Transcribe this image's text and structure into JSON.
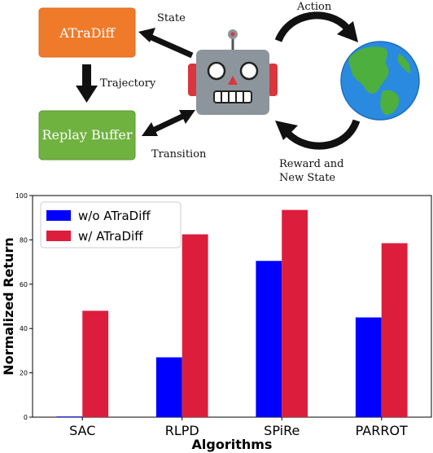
{
  "diagram": {
    "atradiff_box": "ATraDiff",
    "replay_box": "Replay Buffer",
    "edge_state": "State",
    "edge_trajectory": "Trajectory",
    "edge_transition": "Transition",
    "edge_action": "Action",
    "edge_reward_line1": "Reward and",
    "edge_reward_line2": "New State",
    "colors": {
      "atradiff": "#ef7b2a",
      "replay": "#6fb23f",
      "robot_body": "#8c959c",
      "robot_ears": "#d9363e"
    },
    "icons": [
      "robot-icon",
      "earth-globe-icon"
    ]
  },
  "chart_data": {
    "type": "bar",
    "categories": [
      "SAC",
      "RLPD",
      "SPiRe",
      "PARROT"
    ],
    "series": [
      {
        "name": "w/o ATraDiff",
        "color": "#0000ff",
        "values": [
          0.3,
          27,
          70.5,
          45
        ]
      },
      {
        "name": "w/ ATraDiff",
        "color": "#dc1e3c",
        "values": [
          48,
          82.5,
          93.5,
          78.5
        ]
      }
    ],
    "xlabel": "Algorithms",
    "ylabel": "Normalized Return",
    "ylim": [
      0,
      100
    ],
    "yticks": [
      0,
      20,
      40,
      60,
      80,
      100
    ],
    "legend": "top-left",
    "grid": false
  }
}
